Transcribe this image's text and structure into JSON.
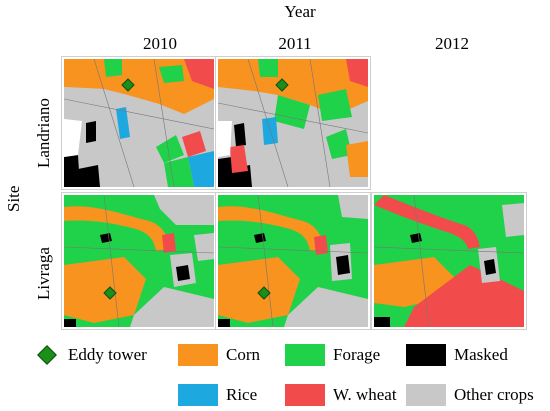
{
  "figure": {
    "top_label": "Year",
    "side_label": "Site",
    "years": [
      "2010",
      "2011",
      "2012"
    ],
    "sites": [
      "Landriano",
      "Livraga"
    ],
    "maps": [
      {
        "site": "Landriano",
        "year": "2010",
        "available": true
      },
      {
        "site": "Landriano",
        "year": "2011",
        "available": true
      },
      {
        "site": "Landriano",
        "year": "2012",
        "available": false
      },
      {
        "site": "Livraga",
        "year": "2010",
        "available": true
      },
      {
        "site": "Livraga",
        "year": "2011",
        "available": true
      },
      {
        "site": "Livraga",
        "year": "2012",
        "available": true
      }
    ]
  },
  "legend": {
    "items": [
      {
        "key": "eddy_tower",
        "label": "Eddy tower",
        "color": "#1a8f1a",
        "icon": "diamond-icon"
      },
      {
        "key": "corn",
        "label": "Corn",
        "color": "#f7931e"
      },
      {
        "key": "forage",
        "label": "Forage",
        "color": "#1fd24a"
      },
      {
        "key": "masked",
        "label": "Masked",
        "color": "#000000"
      },
      {
        "key": "rice",
        "label": "Rice",
        "color": "#1ea8e0"
      },
      {
        "key": "wheat",
        "label": "W. wheat",
        "color": "#f24b4b"
      },
      {
        "key": "other",
        "label": "Other crops",
        "color": "#c8c8c8"
      }
    ]
  }
}
